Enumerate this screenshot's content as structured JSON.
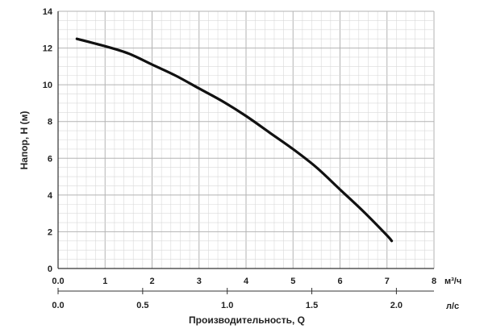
{
  "chart_data": {
    "type": "line",
    "title": "",
    "xlabel": "Производительность, Q",
    "ylabel": "Напор, H (м)",
    "x_unit_primary": "м³/ч",
    "x_unit_secondary": "л/с",
    "xlim": [
      0,
      8
    ],
    "ylim": [
      0,
      14
    ],
    "x_ticks": [
      "0.0",
      "1",
      "2",
      "3",
      "4",
      "5",
      "6",
      "7",
      "8"
    ],
    "x_ticks_secondary": [
      "0.0",
      "0.5",
      "1.0",
      "1.5",
      "2.0"
    ],
    "y_ticks": [
      "0",
      "2",
      "4",
      "6",
      "8",
      "10",
      "12",
      "14"
    ],
    "grid": true,
    "series": [
      {
        "x": [
          0.4,
          1.0,
          1.5,
          2.0,
          2.5,
          3.0,
          3.5,
          4.0,
          4.5,
          5.0,
          5.5,
          6.0,
          6.5,
          7.0,
          7.1
        ],
        "y": [
          12.5,
          12.1,
          11.7,
          11.1,
          10.5,
          9.8,
          9.1,
          8.3,
          7.4,
          6.5,
          5.5,
          4.3,
          3.1,
          1.8,
          1.5
        ]
      }
    ],
    "colors": {
      "line": "#111111",
      "grid_minor": "#d9d9d9",
      "grid_major": "#b3b3b3",
      "axis": "#333333"
    }
  }
}
